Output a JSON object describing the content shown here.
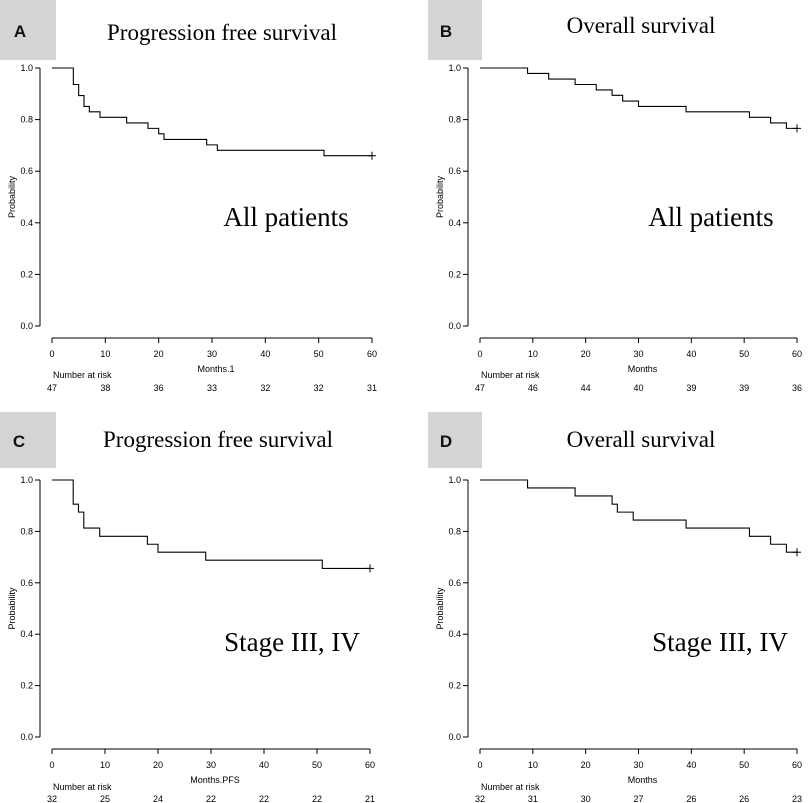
{
  "chart_data": [
    {
      "type": "line",
      "panel": "A",
      "title": "Progression free survival",
      "annotation": "All patients",
      "xlabel": "Months.1",
      "ylabel": "Probability",
      "xlim": [
        0,
        60
      ],
      "ylim": [
        0,
        1
      ],
      "x_ticks": [
        "0",
        "10",
        "20",
        "30",
        "40",
        "50",
        "60"
      ],
      "y_ticks": [
        "0.0",
        "0.2",
        "0.4",
        "0.6",
        "0.8",
        "1.0"
      ],
      "risk_title": "Number at risk",
      "risk_values": [
        "47",
        "38",
        "36",
        "33",
        "32",
        "32",
        "31"
      ],
      "series": [
        {
          "name": "PFS all patients",
          "steps": [
            [
              0,
              1.0
            ],
            [
              4,
              0.936
            ],
            [
              5,
              0.893
            ],
            [
              6,
              0.851
            ],
            [
              7,
              0.83
            ],
            [
              9,
              0.809
            ],
            [
              14,
              0.787
            ],
            [
              18,
              0.766
            ],
            [
              20,
              0.745
            ],
            [
              21,
              0.723
            ],
            [
              29,
              0.702
            ],
            [
              31,
              0.681
            ],
            [
              51,
              0.66
            ],
            [
              60,
              0.66
            ]
          ],
          "censor": [
            [
              60,
              0.66
            ]
          ]
        }
      ]
    },
    {
      "type": "line",
      "panel": "B",
      "title": "Overall survival",
      "annotation": "All patients",
      "xlabel": "Months",
      "ylabel": "Probability",
      "xlim": [
        0,
        60
      ],
      "ylim": [
        0,
        1
      ],
      "x_ticks": [
        "0",
        "10",
        "20",
        "30",
        "40",
        "50",
        "60"
      ],
      "y_ticks": [
        "0.0",
        "0.2",
        "0.4",
        "0.6",
        "0.8",
        "1.0"
      ],
      "risk_title": "Number at risk",
      "risk_values": [
        "47",
        "46",
        "44",
        "40",
        "39",
        "39",
        "36"
      ],
      "series": [
        {
          "name": "OS all patients",
          "steps": [
            [
              0,
              1.0
            ],
            [
              9,
              0.979
            ],
            [
              13,
              0.957
            ],
            [
              18,
              0.936
            ],
            [
              22,
              0.915
            ],
            [
              25,
              0.894
            ],
            [
              27,
              0.872
            ],
            [
              30,
              0.851
            ],
            [
              39,
              0.83
            ],
            [
              51,
              0.809
            ],
            [
              55,
              0.787
            ],
            [
              58,
              0.766
            ],
            [
              60,
              0.766
            ]
          ],
          "censor": [
            [
              60,
              0.766
            ]
          ]
        }
      ]
    },
    {
      "type": "line",
      "panel": "C",
      "title": "Progression free survival",
      "annotation": "Stage III, IV",
      "xlabel": "Months.PFS",
      "ylabel": "Probability",
      "xlim": [
        0,
        60
      ],
      "ylim": [
        0,
        1
      ],
      "x_ticks": [
        "0",
        "10",
        "20",
        "30",
        "40",
        "50",
        "60"
      ],
      "y_ticks": [
        "0.0",
        "0.2",
        "0.4",
        "0.6",
        "0.8",
        "1.0"
      ],
      "risk_title": "Number at risk",
      "risk_values": [
        "32",
        "25",
        "24",
        "22",
        "22",
        "22",
        "21"
      ],
      "series": [
        {
          "name": "PFS stage III, IV",
          "steps": [
            [
              0,
              1.0
            ],
            [
              4,
              0.906
            ],
            [
              5,
              0.875
            ],
            [
              6,
              0.813
            ],
            [
              9,
              0.781
            ],
            [
              18,
              0.75
            ],
            [
              20,
              0.719
            ],
            [
              29,
              0.688
            ],
            [
              51,
              0.656
            ],
            [
              60,
              0.656
            ]
          ],
          "censor": [
            [
              60,
              0.656
            ]
          ]
        }
      ]
    },
    {
      "type": "line",
      "panel": "D",
      "title": "Overall survival",
      "annotation": "Stage III, IV",
      "xlabel": "Months",
      "ylabel": "Probability",
      "xlim": [
        0,
        60
      ],
      "ylim": [
        0,
        1
      ],
      "x_ticks": [
        "0",
        "10",
        "20",
        "30",
        "40",
        "50",
        "60"
      ],
      "y_ticks": [
        "0.0",
        "0.2",
        "0.4",
        "0.6",
        "0.8",
        "1.0"
      ],
      "risk_title": "Number at risk",
      "risk_values": [
        "32",
        "31",
        "30",
        "27",
        "26",
        "26",
        "23"
      ],
      "series": [
        {
          "name": "OS stage III, IV",
          "steps": [
            [
              0,
              1.0
            ],
            [
              9,
              0.969
            ],
            [
              18,
              0.938
            ],
            [
              25,
              0.906
            ],
            [
              26,
              0.875
            ],
            [
              29,
              0.844
            ],
            [
              39,
              0.813
            ],
            [
              51,
              0.781
            ],
            [
              55,
              0.75
            ],
            [
              58,
              0.719
            ],
            [
              60,
              0.719
            ]
          ],
          "censor": [
            [
              60,
              0.719
            ]
          ]
        }
      ]
    }
  ]
}
